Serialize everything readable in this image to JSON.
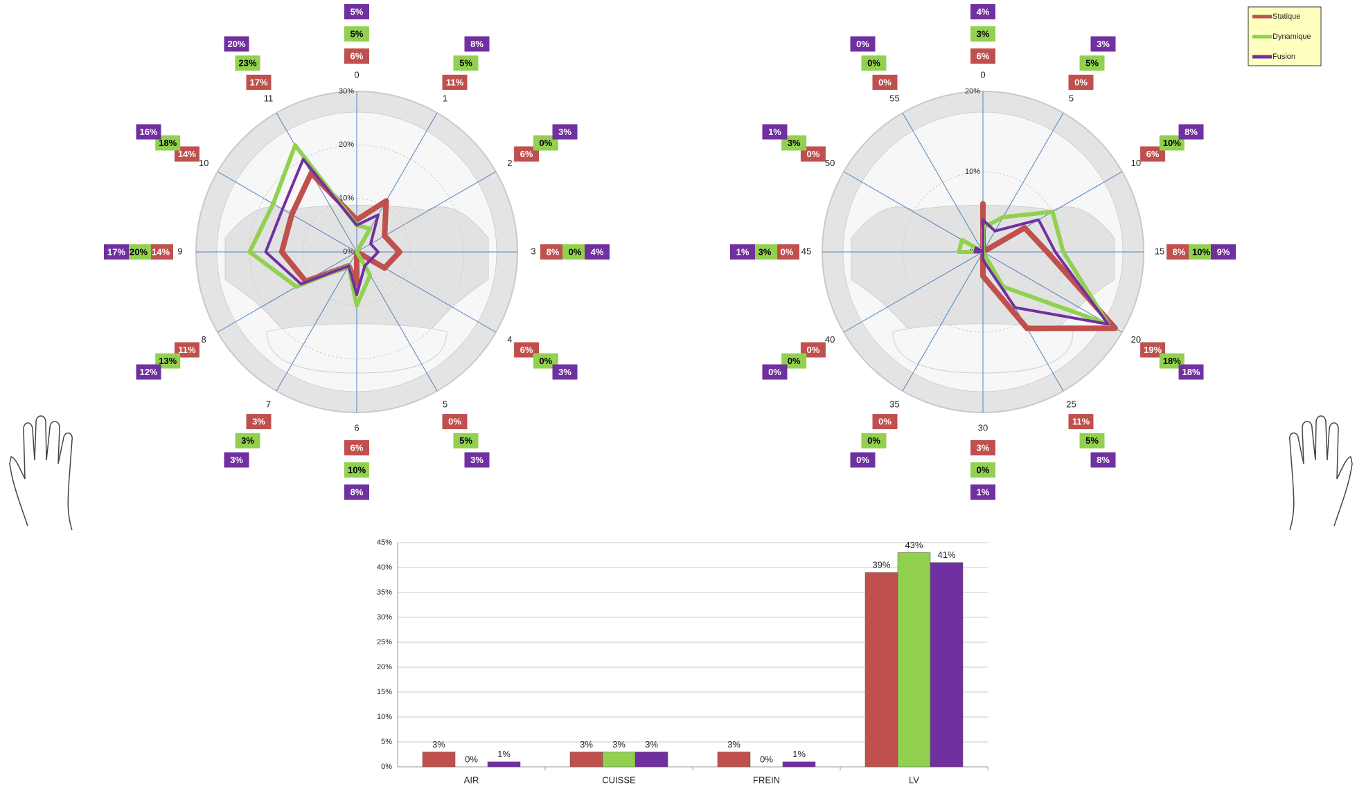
{
  "chart_data": [
    {
      "type": "radar",
      "categories": [
        "0",
        "1",
        "2",
        "3",
        "4",
        "5",
        "6",
        "7",
        "8",
        "9",
        "10",
        "11"
      ],
      "rlim": [
        0,
        30
      ],
      "rticks": [
        {
          "value": 0,
          "label": "0%"
        },
        {
          "value": 10,
          "label": "10%"
        },
        {
          "value": 20,
          "label": "20%"
        },
        {
          "value": 30,
          "label": "30%"
        }
      ],
      "series": [
        {
          "color": "#c0504d",
          "values": [
            6,
            11,
            6,
            8,
            6,
            0,
            6,
            3,
            11,
            14,
            14,
            17
          ],
          "value_labels": [
            "6%",
            "11%",
            "6%",
            "8%",
            "6%",
            "0%",
            "6%",
            "3%",
            "11%",
            "14%",
            "14%",
            "17%"
          ]
        },
        {
          "color": "#92d050",
          "values": [
            5,
            5,
            0,
            0,
            0,
            5,
            10,
            3,
            13,
            20,
            18,
            23
          ],
          "value_labels": [
            "5%",
            "5%",
            "0%",
            "0%",
            "0%",
            "5%",
            "10%",
            "3%",
            "13%",
            "20%",
            "18%",
            "23%"
          ]
        },
        {
          "color": "#7030a0",
          "values": [
            5,
            8,
            3,
            4,
            3,
            3,
            8,
            3,
            12,
            17,
            16,
            20
          ],
          "value_labels": [
            "5%",
            "8%",
            "3%",
            "4%",
            "3%",
            "3%",
            "8%",
            "3%",
            "12%",
            "17%",
            "16%",
            "20%"
          ]
        }
      ]
    },
    {
      "type": "radar",
      "categories": [
        "0",
        "5",
        "10",
        "15",
        "20",
        "25",
        "30",
        "35",
        "40",
        "45",
        "50",
        "55"
      ],
      "rlim": [
        0,
        20
      ],
      "rticks": [
        {
          "value": 0,
          "label": "0%"
        },
        {
          "value": 10,
          "label": "10%"
        },
        {
          "value": 20,
          "label": "20%"
        }
      ],
      "legend": "top-right",
      "series": [
        {
          "name": "Statique",
          "color": "#c0504d",
          "values": [
            6,
            0,
            6,
            8,
            19,
            11,
            3,
            0,
            0,
            0,
            0,
            0
          ],
          "value_labels": [
            "6%",
            "0%",
            "6%",
            "8%",
            "19%",
            "11%",
            "3%",
            "0%",
            "0%",
            "0%",
            "0%",
            "0%"
          ]
        },
        {
          "name": "Dynamique",
          "color": "#92d050",
          "values": [
            3,
            5,
            10,
            10,
            18,
            5,
            0,
            0,
            0,
            3,
            3,
            0
          ],
          "value_labels": [
            "3%",
            "5%",
            "10%",
            "10%",
            "18%",
            "5%",
            "0%",
            "0%",
            "0%",
            "3%",
            "3%",
            "0%"
          ]
        },
        {
          "name": "Fusion",
          "color": "#7030a0",
          "values": [
            4,
            3,
            8,
            9,
            18,
            8,
            1,
            0,
            0,
            1,
            1,
            0
          ],
          "value_labels": [
            "4%",
            "3%",
            "8%",
            "9%",
            "18%",
            "8%",
            "1%",
            "0%",
            "0%",
            "1%",
            "1%",
            "0%"
          ]
        }
      ]
    },
    {
      "type": "bar",
      "categories": [
        "AIR",
        "CUISSE",
        "FREIN",
        "LV"
      ],
      "ylim": [
        0,
        45
      ],
      "yticks": [
        {
          "value": 0,
          "label": "0%"
        },
        {
          "value": 5,
          "label": "5%"
        },
        {
          "value": 10,
          "label": "10%"
        },
        {
          "value": 15,
          "label": "15%"
        },
        {
          "value": 20,
          "label": "20%"
        },
        {
          "value": 25,
          "label": "25%"
        },
        {
          "value": 30,
          "label": "30%"
        },
        {
          "value": 35,
          "label": "35%"
        },
        {
          "value": 40,
          "label": "40%"
        },
        {
          "value": 45,
          "label": "45%"
        }
      ],
      "grid": true,
      "series": [
        {
          "color": "#c0504d",
          "values": [
            3,
            3,
            3,
            39
          ],
          "value_labels": [
            "3%",
            "3%",
            "3%",
            "39%"
          ]
        },
        {
          "color": "#92d050",
          "values": [
            0,
            3,
            0,
            43
          ],
          "value_labels": [
            "0%",
            "3%",
            "0%",
            "43%"
          ]
        },
        {
          "color": "#7030a0",
          "values": [
            1,
            3,
            1,
            41
          ],
          "value_labels": [
            "1%",
            "3%",
            "1%",
            "41%"
          ]
        }
      ]
    }
  ]
}
